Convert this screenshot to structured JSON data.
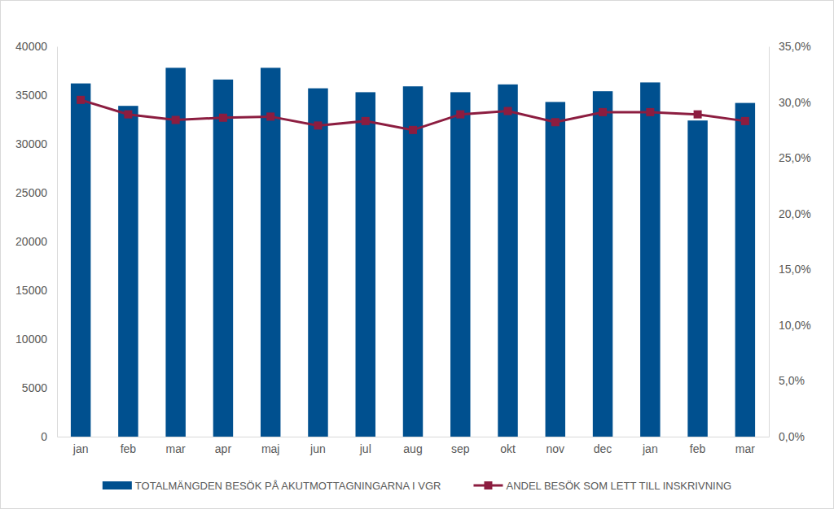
{
  "chart_data": {
    "type": "bar",
    "categories": [
      "jan",
      "feb",
      "mar",
      "apr",
      "maj",
      "jun",
      "jul",
      "aug",
      "sep",
      "okt",
      "nov",
      "dec",
      "jan",
      "feb",
      "mar"
    ],
    "series": [
      {
        "name": "TOTALMÄNGDEN BESÖK PÅ AKUTMOTTAGNINGARNA I VGR",
        "type": "bar",
        "color": "#00508f",
        "values": [
          36200,
          33900,
          37800,
          36600,
          37800,
          35700,
          35300,
          35900,
          35300,
          36100,
          34300,
          35400,
          36300,
          32400,
          34200
        ]
      },
      {
        "name": "ANDEL BESÖK SOM LETT TILL INSKRIVNING",
        "type": "line",
        "color": "#8c1d40",
        "marker": "square",
        "axis": "y2",
        "values": [
          30.2,
          28.9,
          28.4,
          28.6,
          28.7,
          27.9,
          28.3,
          27.5,
          28.9,
          29.2,
          28.2,
          29.1,
          29.1,
          28.9,
          28.3
        ]
      }
    ],
    "ylim": [
      0,
      40000
    ],
    "yticks": [
      0,
      5000,
      10000,
      15000,
      20000,
      25000,
      30000,
      35000,
      40000
    ],
    "y2lim": [
      0,
      35
    ],
    "y2ticks": [
      {
        "value": 0,
        "label": "0,0%"
      },
      {
        "value": 5,
        "label": "5,0%"
      },
      {
        "value": 10,
        "label": "10,0%"
      },
      {
        "value": 15,
        "label": "15,0%"
      },
      {
        "value": 20,
        "label": "20,0%"
      },
      {
        "value": 25,
        "label": "25,0%"
      },
      {
        "value": 30,
        "label": "30,0%"
      },
      {
        "value": 35,
        "label": "35,0%"
      }
    ],
    "grid": false,
    "legend": "bottom"
  }
}
